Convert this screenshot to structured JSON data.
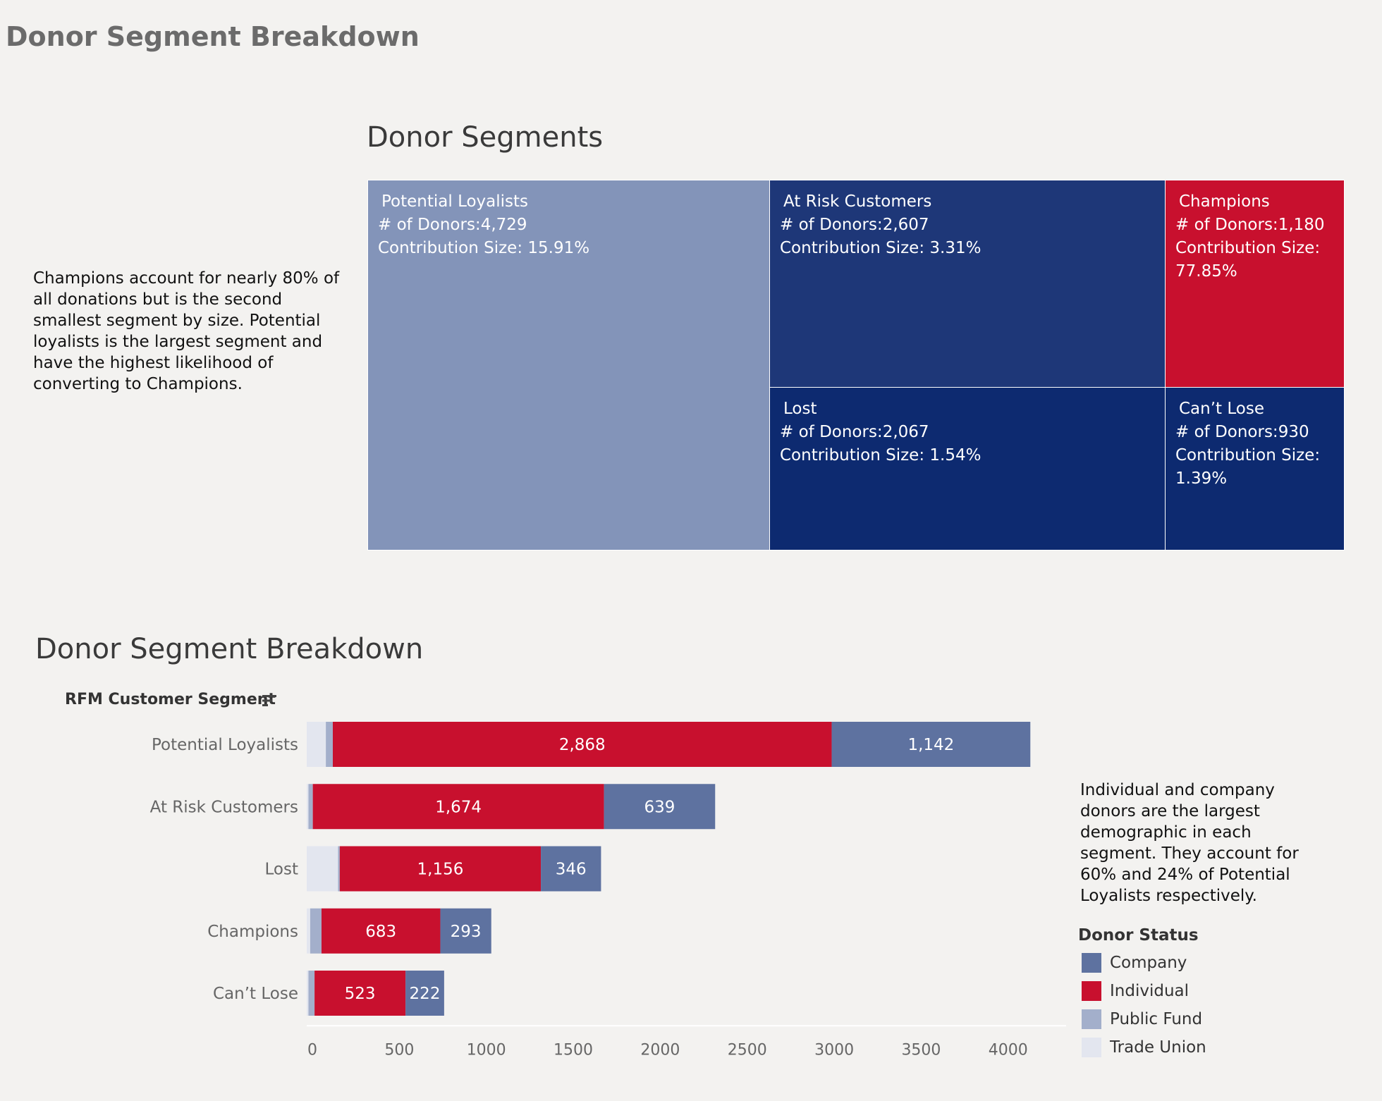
{
  "dashboard_title": "Donor Segment Breakdown",
  "treemap": {
    "title": "Donor Segments",
    "donors_prefix": "# of Donors:",
    "contribution_prefix": "Contribution Size:",
    "tiles": [
      {
        "name": "Potential Loyalists",
        "donors": "4,729",
        "contribution": "15.91%",
        "color": "#8394b9"
      },
      {
        "name": "At Risk Customers",
        "donors": "2,607",
        "contribution": "3.31%",
        "color": "#1e3778"
      },
      {
        "name": "Champions",
        "donors": "1,180",
        "contribution": "77.85%",
        "color": "#c8102e"
      },
      {
        "name": "Lost",
        "donors": "2,067",
        "contribution": "1.54%",
        "color": "#0d2a70"
      },
      {
        "name": "Can’t Lose",
        "donors": "930",
        "contribution": "1.39%",
        "color": "#0d2a70"
      }
    ]
  },
  "left_note": "Champions account for nearly 80% of all donations but is the second smallest segment by size. Potential loyalists is the largest segment and have the highest likelihood of converting to Champions.",
  "right_note": "Individual and company donors are the largest demographic in each segment. They account for 60% and 24% of Potential Loyalists respectively.",
  "chart_data": {
    "type": "bar",
    "orientation": "horizontal",
    "stacked": true,
    "title": "Donor Segment Breakdown",
    "ylabel": "RFM Customer Segment",
    "categories": [
      "Potential Loyalists",
      "At Risk Customers",
      "Lost",
      "Champions",
      "Can’t Lose"
    ],
    "series": [
      {
        "name": "Trade Union",
        "color": "#e3e6ef",
        "values": [
          110,
          10,
          180,
          20,
          10
        ]
      },
      {
        "name": "Public Fund",
        "color": "#a3afcb",
        "values": [
          40,
          25,
          10,
          65,
          35
        ]
      },
      {
        "name": "Individual",
        "color": "#c8102e",
        "values": [
          2868,
          1674,
          1156,
          683,
          523
        ]
      },
      {
        "name": "Company",
        "color": "#5e72a0",
        "values": [
          1142,
          639,
          346,
          293,
          222
        ]
      }
    ],
    "data_labels": [
      [
        "",
        "",
        "2,868",
        "1,142"
      ],
      [
        "",
        "",
        "1,674",
        "639"
      ],
      [
        "",
        "",
        "1,156",
        "346"
      ],
      [
        "",
        "",
        "683",
        "293"
      ],
      [
        "",
        "",
        "523",
        "222"
      ]
    ],
    "xlim": [
      0,
      4300
    ],
    "xticks": [
      "0",
      "500",
      "1000",
      "1500",
      "2000",
      "2500",
      "3000",
      "3500",
      "4000"
    ],
    "legend": {
      "title": "Donor Status",
      "items": [
        {
          "label": "Company",
          "color": "#5e72a0"
        },
        {
          "label": "Individual",
          "color": "#c8102e"
        },
        {
          "label": "Public Fund",
          "color": "#a3afcb"
        },
        {
          "label": "Trade Union",
          "color": "#e3e6ef"
        }
      ],
      "placement": "right"
    }
  }
}
